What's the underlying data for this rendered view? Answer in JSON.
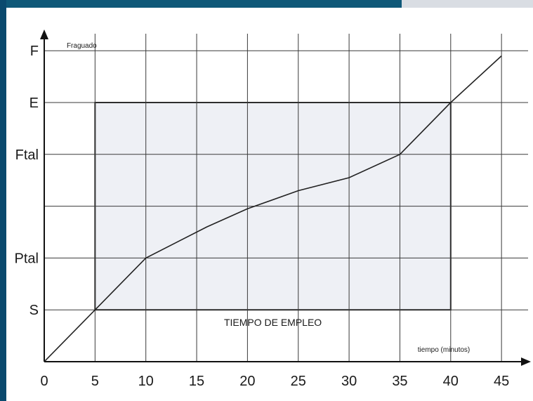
{
  "chart_data": {
    "type": "line",
    "x": [
      0,
      5,
      10,
      16,
      20,
      25,
      30,
      35,
      40,
      45
    ],
    "series": [
      {
        "values": [
          0,
          1,
          2,
          2.6,
          2.95,
          3.3,
          3.55,
          4,
          5,
          5.9
        ]
      }
    ],
    "x_ticks": [
      {
        "value": 0,
        "label": "0"
      },
      {
        "value": 5,
        "label": "5"
      },
      {
        "value": 10,
        "label": "10"
      },
      {
        "value": 15,
        "label": "15"
      },
      {
        "value": 20,
        "label": "20"
      },
      {
        "value": 25,
        "label": "25"
      },
      {
        "value": 30,
        "label": "30"
      },
      {
        "value": 35,
        "label": "35"
      },
      {
        "value": 40,
        "label": "40"
      },
      {
        "value": 45,
        "label": "45"
      }
    ],
    "y_ticks": [
      {
        "value": 1,
        "label": "S"
      },
      {
        "value": 2,
        "label": "Ptal"
      },
      {
        "value": 3,
        "label": ""
      },
      {
        "value": 4,
        "label": "Ftal"
      },
      {
        "value": 5,
        "label": "E"
      },
      {
        "value": 6,
        "label": "F"
      }
    ],
    "xlim": [
      0,
      46
    ],
    "ylim": [
      0,
      6
    ],
    "xlabel": "tiempo (minutos)",
    "ylabel": "",
    "grid": true,
    "region": {
      "x0": 5,
      "x1": 40,
      "y0": 1,
      "y1": 5,
      "label": "TIEMPO DE EMPLEO"
    },
    "annotations": [
      {
        "text": "Fraguado",
        "x": 2,
        "y": 6
      }
    ],
    "colors": {
      "frame_left": "#0a4a6e",
      "frame_top": "#0f5878",
      "frame_top_right": "#d9dde3",
      "region_fill": "#eef0f5",
      "ink": "#1a1a1a"
    }
  }
}
